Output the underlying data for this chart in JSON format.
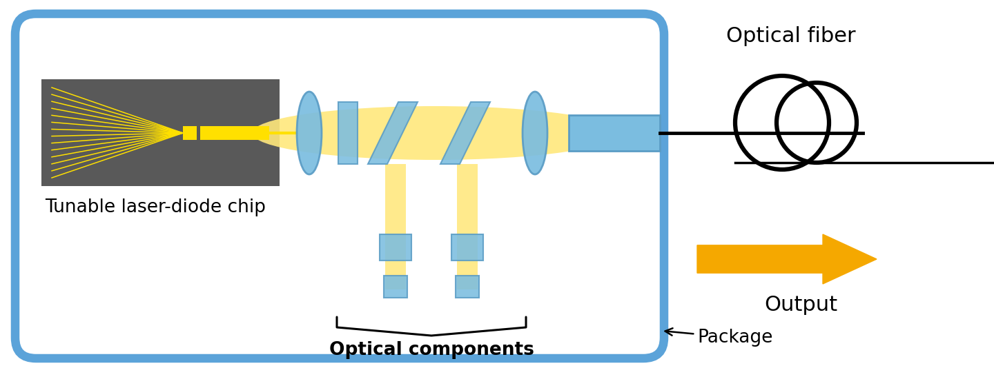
{
  "bg_color": "#ffffff",
  "box_color": "#5ba3d9",
  "box_fill": "#ffffff",
  "chip_bg": "#595959",
  "yellow": "#FFE000",
  "yellow_beam": "#FFE87C",
  "blue_optic": "#7bbde0",
  "blue_optic_dark": "#5a9cc5",
  "arrow_orange": "#F5A800",
  "label_chip": "Tunable laser-diode chip",
  "label_optical": "Optical components",
  "label_package": "Package",
  "label_fiber": "Optical fiber",
  "label_output": "Output",
  "fig_w": 14.4,
  "fig_h": 5.34,
  "dpi": 100
}
